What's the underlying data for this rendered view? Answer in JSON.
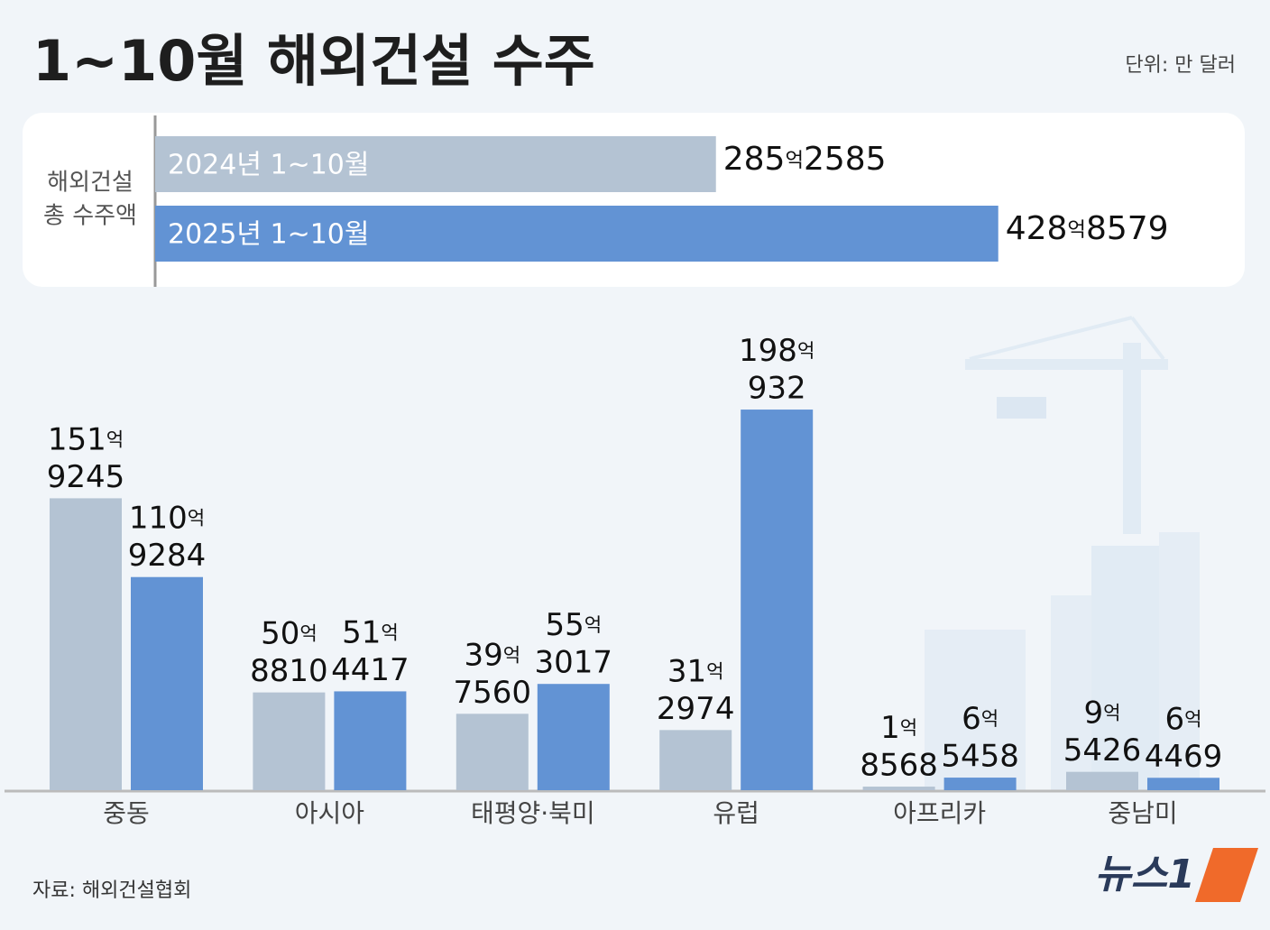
{
  "title": "1~10월 해외건설 수주",
  "unit": "단위: 만 달러",
  "source": "자료: 해외건설협회",
  "logo": "뉴스1",
  "chart_data": [
    {
      "type": "hbar",
      "label": [
        "해외건설",
        "총 수주액"
      ],
      "categories": [
        "2024년 1~10월",
        "2025년 1~10월"
      ],
      "values": [
        2852585,
        4288579
      ],
      "value_labels": [
        "285억2585",
        "428억8579"
      ],
      "colors": [
        "#b4c3d3",
        "#6293d4"
      ],
      "xlim": [
        0,
        4400000
      ]
    },
    {
      "type": "bar",
      "categories": [
        "중동",
        "아시아",
        "태평양·북미",
        "유럽",
        "아프리카",
        "중남미"
      ],
      "series": [
        {
          "color": "#b4c3d3",
          "values": [
            1519245,
            508810,
            397560,
            312974,
            18568,
            95426
          ],
          "value_labels": [
            [
              "151억",
              "9245"
            ],
            [
              "50억",
              "8810"
            ],
            [
              "39억",
              "7560"
            ],
            [
              "31억",
              "2974"
            ],
            [
              "1억",
              "8568"
            ],
            [
              "9억",
              "5426"
            ]
          ]
        },
        {
          "color": "#6293d4",
          "values": [
            1109284,
            514417,
            553017,
            1980932,
            65458,
            64469
          ],
          "value_labels": [
            [
              "110억",
              "9284"
            ],
            [
              "51억",
              "4417"
            ],
            [
              "55억",
              "3017"
            ],
            [
              "198억",
              "932"
            ],
            [
              "6억",
              "5458"
            ],
            [
              "6억",
              "4469"
            ]
          ]
        }
      ],
      "ylim": [
        0,
        2000000
      ]
    }
  ]
}
